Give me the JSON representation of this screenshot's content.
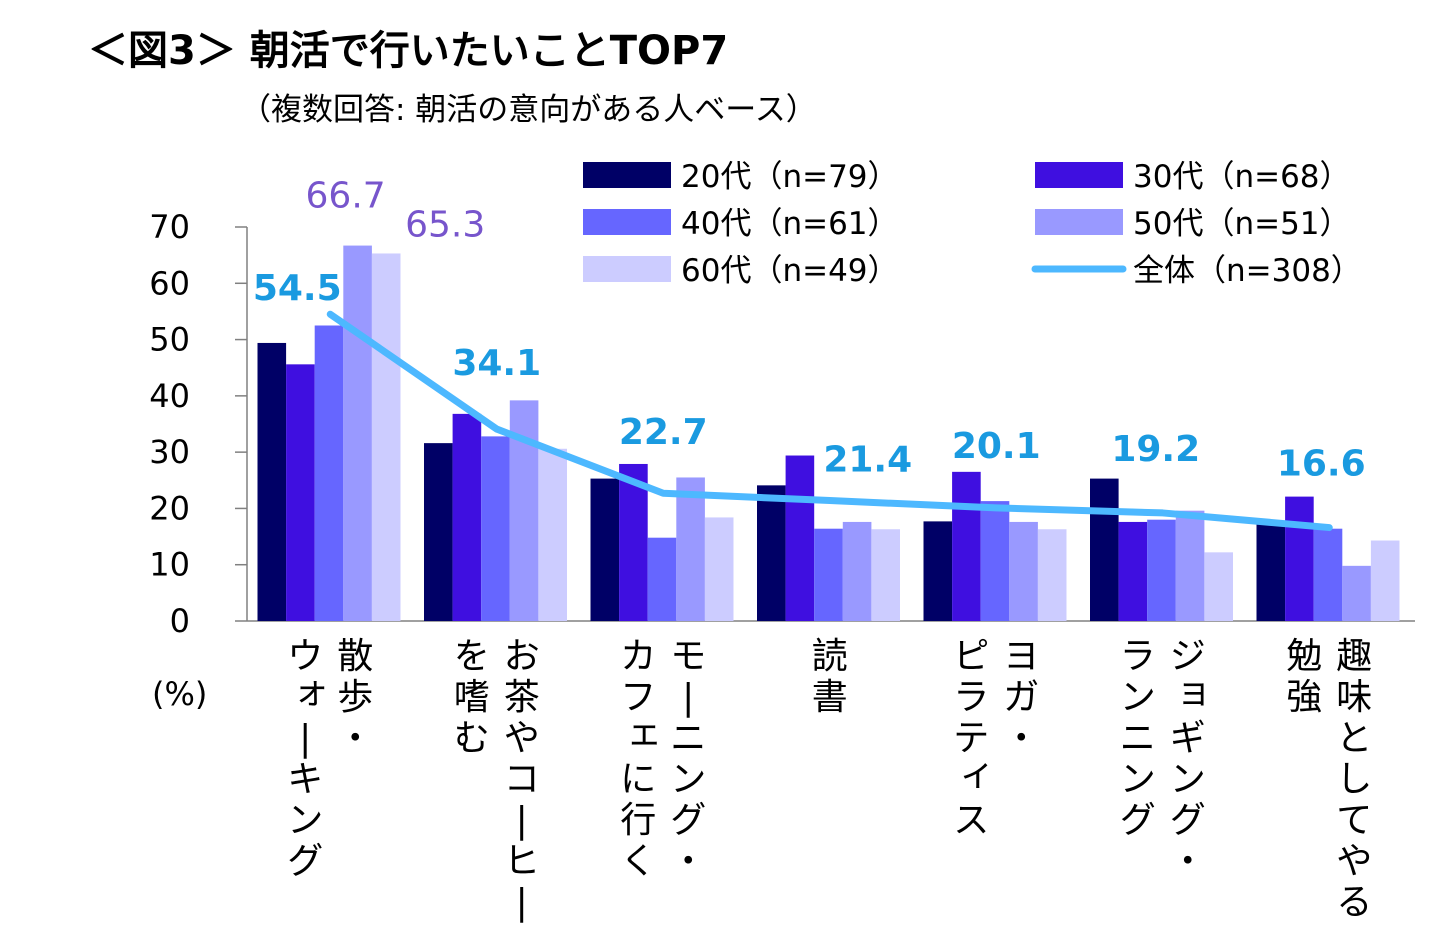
{
  "chart_data": {
    "type": "bar",
    "title": "＜図3＞ 朝活で行いたいことTOP7",
    "subtitle": "（複数回答: 朝活の意向がある人ベース）",
    "ylabel": "(%)",
    "ylim": [
      0,
      70
    ],
    "yticks": [
      0,
      10,
      20,
      30,
      40,
      50,
      60,
      70
    ],
    "grid": false,
    "legend_position": "top-right",
    "categories": [
      {
        "lines": [
          "散歩・",
          "ウォーキング"
        ]
      },
      {
        "lines": [
          "お茶やコーヒー",
          "を嗜む"
        ]
      },
      {
        "lines": [
          "モーニング・",
          "カフェに行く"
        ]
      },
      {
        "lines": [
          "読",
          "書"
        ],
        "single_column": true
      },
      {
        "lines": [
          "ヨガ・",
          "ピラティス"
        ]
      },
      {
        "lines": [
          "ジョギング・",
          "ランニング"
        ]
      },
      {
        "lines": [
          "趣味としてやる",
          "勉強"
        ]
      }
    ],
    "series": [
      {
        "name": "20代（n=79）",
        "color": "#000066",
        "values": [
          49.4,
          31.6,
          25.3,
          24.1,
          17.7,
          25.3,
          17.7
        ]
      },
      {
        "name": "30代（n=68）",
        "color": "#3f0fe0",
        "values": [
          45.6,
          36.8,
          27.9,
          29.4,
          26.5,
          17.6,
          22.1
        ]
      },
      {
        "name": "40代（n=61）",
        "color": "#6666ff",
        "values": [
          52.5,
          32.8,
          14.8,
          16.4,
          21.3,
          18.0,
          16.4
        ]
      },
      {
        "name": "50代（n=51）",
        "color": "#9999ff",
        "values": [
          66.7,
          39.2,
          25.5,
          17.6,
          17.6,
          19.6,
          9.8
        ]
      },
      {
        "name": "60代（n=49）",
        "color": "#ccccff",
        "values": [
          65.3,
          30.6,
          18.4,
          16.3,
          16.3,
          12.2,
          14.3
        ]
      }
    ],
    "line_series": {
      "name": "全体（n=308）",
      "color": "#4db8ff",
      "values": [
        54.5,
        34.1,
        22.7,
        21.4,
        20.1,
        19.2,
        16.6
      ],
      "labels": [
        "54.5",
        "34.1",
        "22.7",
        "21.4",
        "20.1",
        "19.2",
        "16.6"
      ],
      "label_color": "#1a9ae0"
    },
    "annotations": [
      {
        "text": "66.7",
        "series": 3,
        "category": 0,
        "color": "#7755cc"
      },
      {
        "text": "65.3",
        "series": 4,
        "category": 0,
        "color": "#7755cc"
      }
    ]
  }
}
